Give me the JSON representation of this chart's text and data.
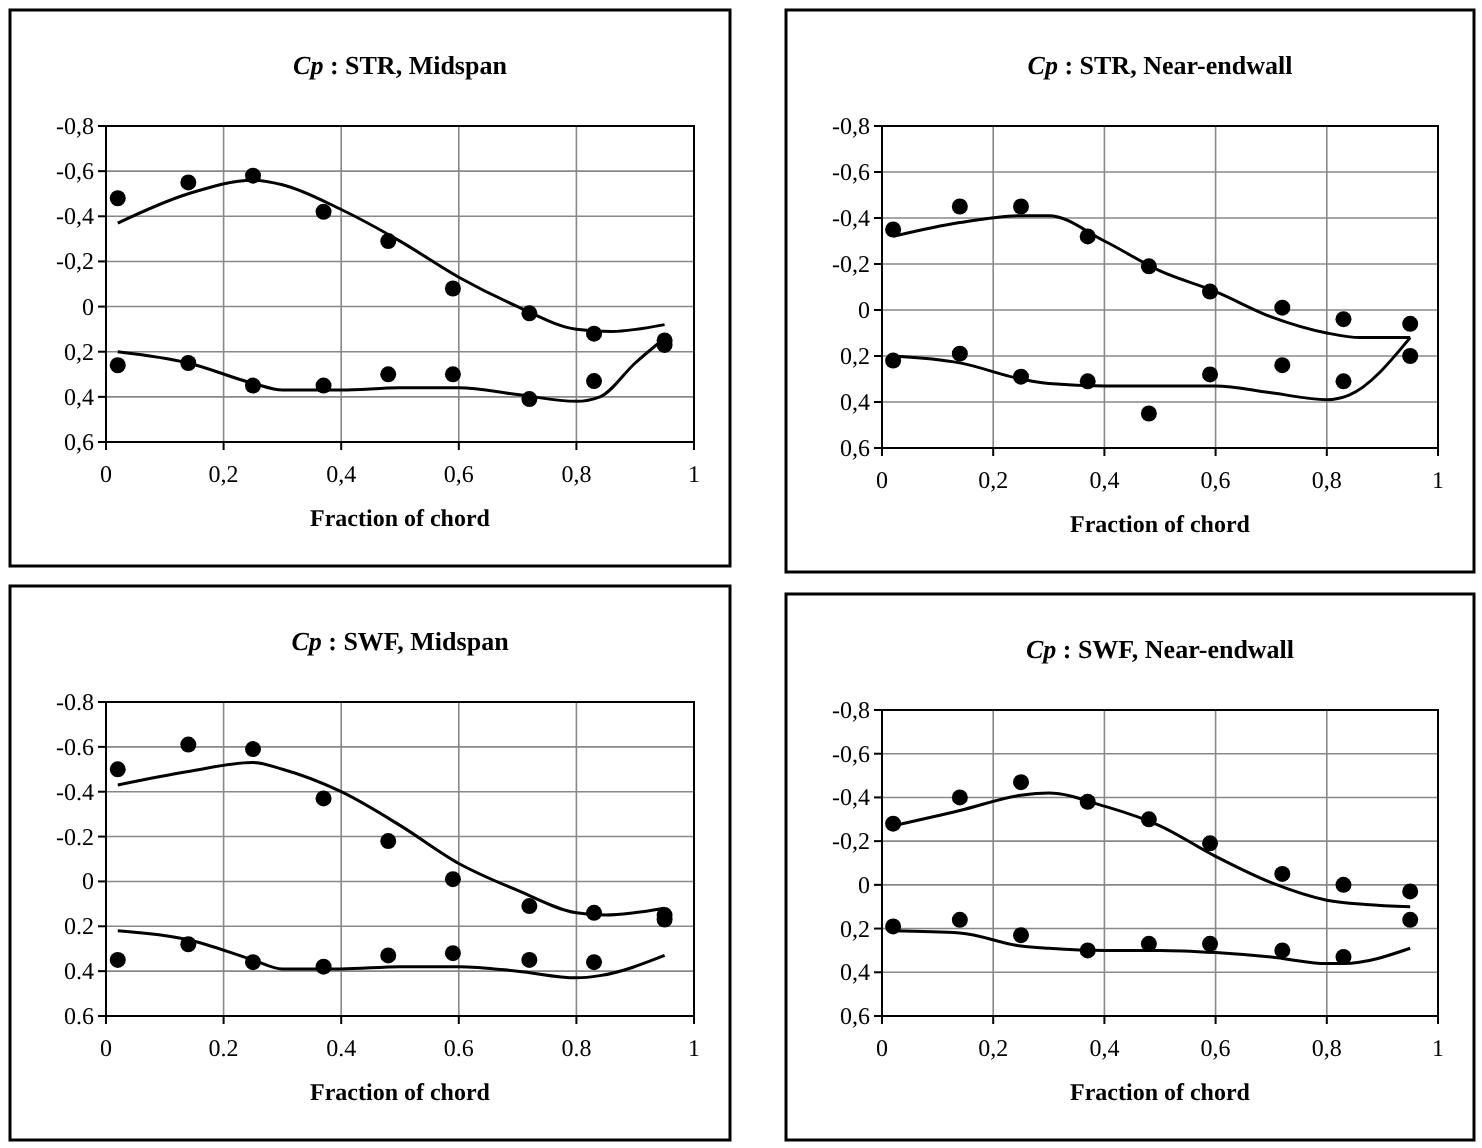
{
  "chart_data": [
    {
      "type": "scatter",
      "title": "Cp : STR, Midspan",
      "xlabel": "Fraction of chord",
      "xlim": [
        0,
        1
      ],
      "ylim": [
        0.6,
        -0.8
      ],
      "grid": true,
      "marker": "circle",
      "xticks": [
        {
          "value": 0,
          "label": "0"
        },
        {
          "value": 0.2,
          "label": "0,2"
        },
        {
          "value": 0.4,
          "label": "0,4"
        },
        {
          "value": 0.6,
          "label": "0,6"
        },
        {
          "value": 0.8,
          "label": "0,8"
        },
        {
          "value": 1,
          "label": "1"
        }
      ],
      "yticks": [
        {
          "value": -0.8,
          "label": "-0,8"
        },
        {
          "value": -0.6,
          "label": "-0,6"
        },
        {
          "value": -0.4,
          "label": "-0,4"
        },
        {
          "value": -0.2,
          "label": "-0,2"
        },
        {
          "value": 0,
          "label": "0"
        },
        {
          "value": 0.2,
          "label": "0,2"
        },
        {
          "value": 0.4,
          "label": "0,4"
        },
        {
          "value": 0.6,
          "label": "0,6"
        }
      ],
      "series": [
        {
          "color": "#000000",
          "x": [
            0.02,
            0.14,
            0.25,
            0.37,
            0.48,
            0.59,
            0.72,
            0.83,
            0.95
          ],
          "values": [
            -0.48,
            -0.55,
            -0.58,
            -0.42,
            -0.29,
            -0.08,
            0.03,
            0.12,
            0.15
          ]
        },
        {
          "color": "#000000",
          "x": [
            0.02,
            0.14,
            0.25,
            0.37,
            0.48,
            0.59,
            0.72,
            0.83,
            0.95
          ],
          "values": [
            0.26,
            0.25,
            0.35,
            0.35,
            0.3,
            0.3,
            0.41,
            0.33,
            0.17
          ]
        },
        {
          "type": "line",
          "color": "#000000",
          "marker": "none",
          "line_style": "solid",
          "x": [
            0.02,
            0.14,
            0.25,
            0.3,
            0.4,
            0.5,
            0.6,
            0.7,
            0.8,
            0.86,
            0.95
          ],
          "values": [
            -0.37,
            -0.5,
            -0.56,
            -0.54,
            -0.43,
            -0.29,
            -0.13,
            0,
            0.1,
            0.11,
            0.08
          ]
        },
        {
          "type": "line",
          "color": "#000000",
          "marker": "none",
          "line_style": "solid",
          "x": [
            0.02,
            0.14,
            0.25,
            0.3,
            0.4,
            0.5,
            0.6,
            0.7,
            0.8,
            0.84,
            0.9,
            0.95
          ],
          "values": [
            0.2,
            0.25,
            0.34,
            0.37,
            0.37,
            0.36,
            0.36,
            0.39,
            0.42,
            0.4,
            0.25,
            0.14
          ]
        }
      ]
    },
    {
      "type": "scatter",
      "title": "Cp : STR, Near-endwall",
      "xlabel": "Fraction of chord",
      "xlim": [
        0,
        1
      ],
      "ylim": [
        0.6,
        -0.8
      ],
      "grid": true,
      "marker": "circle",
      "xticks": [
        {
          "value": 0,
          "label": "0"
        },
        {
          "value": 0.2,
          "label": "0,2"
        },
        {
          "value": 0.4,
          "label": "0,4"
        },
        {
          "value": 0.6,
          "label": "0,6"
        },
        {
          "value": 0.8,
          "label": "0,8"
        },
        {
          "value": 1,
          "label": "1"
        }
      ],
      "yticks": [
        {
          "value": -0.8,
          "label": "-0,8"
        },
        {
          "value": -0.6,
          "label": "-0,6"
        },
        {
          "value": -0.4,
          "label": "-0,4"
        },
        {
          "value": -0.2,
          "label": "-0,2"
        },
        {
          "value": 0,
          "label": "0"
        },
        {
          "value": 0.2,
          "label": "0,2"
        },
        {
          "value": 0.4,
          "label": "0,4"
        },
        {
          "value": 0.6,
          "label": "0,6"
        }
      ],
      "series": [
        {
          "color": "#000000",
          "x": [
            0.02,
            0.14,
            0.25,
            0.37,
            0.48,
            0.59,
            0.72,
            0.83,
            0.95
          ],
          "values": [
            -0.35,
            -0.45,
            -0.45,
            -0.32,
            -0.19,
            -0.08,
            -0.01,
            0.04,
            0.06
          ]
        },
        {
          "color": "#000000",
          "x": [
            0.02,
            0.14,
            0.25,
            0.37,
            0.48,
            0.59,
            0.72,
            0.83,
            0.95
          ],
          "values": [
            0.22,
            0.19,
            0.29,
            0.31,
            0.45,
            0.28,
            0.24,
            0.31,
            0.2
          ]
        },
        {
          "type": "line",
          "color": "#000000",
          "marker": "none",
          "line_style": "solid",
          "x": [
            0.02,
            0.14,
            0.25,
            0.3,
            0.4,
            0.5,
            0.6,
            0.7,
            0.8,
            0.86,
            0.95
          ],
          "values": [
            -0.32,
            -0.38,
            -0.41,
            -0.41,
            -0.3,
            -0.17,
            -0.08,
            0.03,
            0.1,
            0.12,
            0.12
          ]
        },
        {
          "type": "line",
          "color": "#000000",
          "marker": "none",
          "line_style": "solid",
          "x": [
            0.02,
            0.14,
            0.25,
            0.3,
            0.4,
            0.5,
            0.6,
            0.7,
            0.8,
            0.84,
            0.95
          ],
          "values": [
            0.2,
            0.23,
            0.3,
            0.32,
            0.33,
            0.33,
            0.33,
            0.36,
            0.39,
            0.37,
            0.12
          ]
        }
      ]
    },
    {
      "type": "scatter",
      "title": "Cp : SWF, Midspan",
      "xlabel": "Fraction of chord",
      "xlim": [
        0,
        1
      ],
      "ylim": [
        0.6,
        -0.8
      ],
      "grid": true,
      "marker": "circle",
      "xticks": [
        {
          "value": 0,
          "label": "0"
        },
        {
          "value": 0.2,
          "label": "0.2"
        },
        {
          "value": 0.4,
          "label": "0.4"
        },
        {
          "value": 0.6,
          "label": "0.6"
        },
        {
          "value": 0.8,
          "label": "0.8"
        },
        {
          "value": 1,
          "label": "1"
        }
      ],
      "yticks": [
        {
          "value": -0.8,
          "label": "-0.8"
        },
        {
          "value": -0.6,
          "label": "-0.6"
        },
        {
          "value": -0.4,
          "label": "-0.4"
        },
        {
          "value": -0.2,
          "label": "-0.2"
        },
        {
          "value": 0,
          "label": "0"
        },
        {
          "value": 0.2,
          "label": "0.2"
        },
        {
          "value": 0.4,
          "label": "0.4"
        },
        {
          "value": 0.6,
          "label": "0.6"
        }
      ],
      "series": [
        {
          "color": "#000000",
          "x": [
            0.02,
            0.14,
            0.25,
            0.37,
            0.48,
            0.59,
            0.72,
            0.83,
            0.95
          ],
          "values": [
            -0.5,
            -0.61,
            -0.59,
            -0.37,
            -0.18,
            -0.01,
            0.11,
            0.14,
            0.15
          ]
        },
        {
          "color": "#000000",
          "x": [
            0.02,
            0.14,
            0.25,
            0.37,
            0.48,
            0.59,
            0.72,
            0.83,
            0.95
          ],
          "values": [
            0.35,
            0.28,
            0.36,
            0.38,
            0.33,
            0.32,
            0.35,
            0.36,
            0.17
          ]
        },
        {
          "type": "line",
          "color": "#000000",
          "marker": "none",
          "line_style": "solid",
          "x": [
            0.02,
            0.14,
            0.25,
            0.3,
            0.4,
            0.5,
            0.6,
            0.7,
            0.8,
            0.85,
            0.95
          ],
          "values": [
            -0.43,
            -0.49,
            -0.53,
            -0.5,
            -0.4,
            -0.25,
            -0.08,
            0.04,
            0.14,
            0.15,
            0.12
          ]
        },
        {
          "type": "line",
          "color": "#000000",
          "marker": "none",
          "line_style": "solid",
          "x": [
            0.02,
            0.14,
            0.25,
            0.3,
            0.4,
            0.5,
            0.6,
            0.7,
            0.8,
            0.84,
            0.95
          ],
          "values": [
            0.22,
            0.26,
            0.35,
            0.39,
            0.39,
            0.38,
            0.38,
            0.4,
            0.43,
            0.42,
            0.33
          ]
        }
      ]
    },
    {
      "type": "scatter",
      "title": "Cp : SWF, Near-endwall",
      "xlabel": "Fraction of chord",
      "xlim": [
        0,
        1
      ],
      "ylim": [
        0.6,
        -0.8
      ],
      "grid": true,
      "marker": "circle",
      "xticks": [
        {
          "value": 0,
          "label": "0"
        },
        {
          "value": 0.2,
          "label": "0,2"
        },
        {
          "value": 0.4,
          "label": "0,4"
        },
        {
          "value": 0.6,
          "label": "0,6"
        },
        {
          "value": 0.8,
          "label": "0,8"
        },
        {
          "value": 1,
          "label": "1"
        }
      ],
      "yticks": [
        {
          "value": -0.8,
          "label": "-0,8"
        },
        {
          "value": -0.6,
          "label": "-0,6"
        },
        {
          "value": -0.4,
          "label": "-0,4"
        },
        {
          "value": -0.2,
          "label": "-0,2"
        },
        {
          "value": 0,
          "label": "0"
        },
        {
          "value": 0.2,
          "label": "0,2"
        },
        {
          "value": 0.4,
          "label": "0,4"
        },
        {
          "value": 0.6,
          "label": "0,6"
        }
      ],
      "series": [
        {
          "color": "#000000",
          "x": [
            0.02,
            0.14,
            0.25,
            0.37,
            0.48,
            0.59,
            0.72,
            0.83,
            0.95
          ],
          "values": [
            -0.28,
            -0.4,
            -0.47,
            -0.38,
            -0.3,
            -0.19,
            -0.05,
            0,
            0.03
          ]
        },
        {
          "color": "#000000",
          "x": [
            0.02,
            0.14,
            0.25,
            0.37,
            0.48,
            0.59,
            0.72,
            0.83,
            0.95
          ],
          "values": [
            0.19,
            0.16,
            0.23,
            0.3,
            0.27,
            0.27,
            0.3,
            0.33,
            0.16
          ]
        },
        {
          "type": "line",
          "color": "#000000",
          "marker": "none",
          "line_style": "solid",
          "x": [
            0.02,
            0.14,
            0.25,
            0.3,
            0.4,
            0.5,
            0.6,
            0.7,
            0.8,
            0.87,
            0.95
          ],
          "values": [
            -0.27,
            -0.34,
            -0.41,
            -0.42,
            -0.36,
            -0.27,
            -0.13,
            -0.01,
            0.07,
            0.09,
            0.1
          ]
        },
        {
          "type": "line",
          "color": "#000000",
          "marker": "none",
          "line_style": "solid",
          "x": [
            0.02,
            0.14,
            0.25,
            0.3,
            0.4,
            0.5,
            0.6,
            0.7,
            0.8,
            0.83,
            0.95
          ],
          "values": [
            0.21,
            0.22,
            0.28,
            0.29,
            0.3,
            0.3,
            0.31,
            0.33,
            0.36,
            0.36,
            0.29
          ]
        }
      ]
    }
  ]
}
